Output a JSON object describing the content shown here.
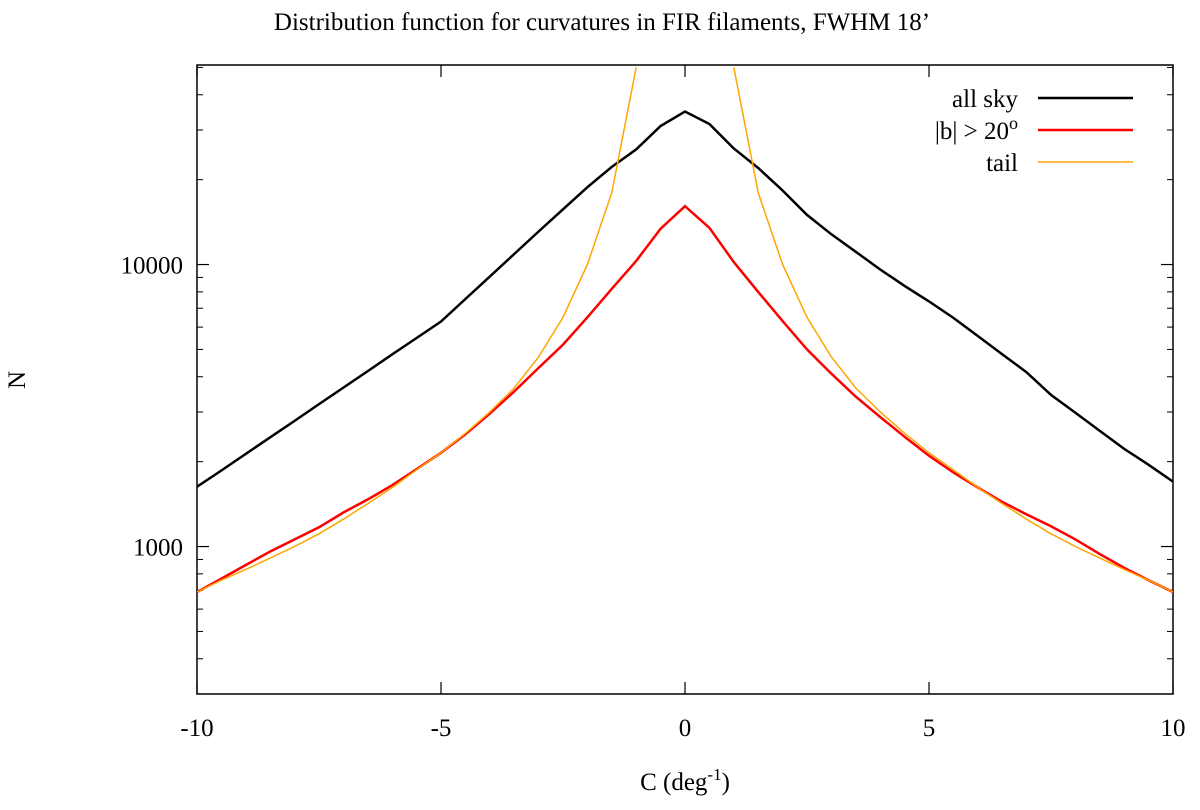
{
  "chart_data": {
    "type": "line",
    "title": "Distribution function for curvatures in FIR filaments, FWHM 18’",
    "xlabel": [
      "C (deg",
      "-1",
      ")"
    ],
    "ylabel": "N",
    "x": [
      -10,
      -9.5,
      -9,
      -8.5,
      -8,
      -7.5,
      -7,
      -6.5,
      -6,
      -5.5,
      -5,
      -4.5,
      -4,
      -3.5,
      -3,
      -2.5,
      -2,
      -1.5,
      -1,
      -0.5,
      0,
      0.5,
      1,
      1.5,
      2,
      2.5,
      3,
      3.5,
      4,
      4.5,
      5,
      5.5,
      6,
      6.5,
      7,
      7.5,
      8,
      8.5,
      9,
      9.5,
      10
    ],
    "series": [
      {
        "name": "all sky",
        "color": "#000000",
        "values": [
          1630,
          1860,
          2130,
          2440,
          2790,
          3200,
          3660,
          4190,
          4800,
          5490,
          6280,
          7550,
          9060,
          10900,
          13100,
          15700,
          18800,
          22200,
          25600,
          31000,
          34900,
          31500,
          25800,
          22000,
          18300,
          15000,
          12800,
          11100,
          9600,
          8400,
          7400,
          6470,
          5580,
          4810,
          4150,
          3450,
          2980,
          2570,
          2220,
          1950,
          1700
        ]
      },
      {
        "name": "|b| > 20",
        "name_sup": "o",
        "color": "#ff0000",
        "values": [
          690,
          770,
          860,
          960,
          1060,
          1170,
          1320,
          1470,
          1650,
          1880,
          2150,
          2500,
          2960,
          3550,
          4300,
          5200,
          6500,
          8200,
          10300,
          13400,
          16100,
          13500,
          10200,
          8000,
          6300,
          5000,
          4100,
          3400,
          2880,
          2450,
          2100,
          1830,
          1620,
          1440,
          1300,
          1180,
          1060,
          940,
          840,
          760,
          690
        ]
      },
      {
        "name": "tail",
        "color": "#ffa500",
        "values": [
          690,
          760,
          830,
          910,
          1000,
          1110,
          1250,
          1420,
          1620,
          1870,
          2150,
          2520,
          3000,
          3650,
          4700,
          6500,
          10000,
          18000,
          50000,
          null,
          null,
          null,
          50000,
          18000,
          10000,
          6500,
          4700,
          3650,
          3000,
          2520,
          2150,
          1870,
          1620,
          1420,
          1250,
          1110,
          1000,
          910,
          830,
          760,
          690
        ]
      }
    ],
    "xlim": [
      -10,
      10
    ],
    "xticks": [
      -10,
      -5,
      0,
      5,
      10
    ],
    "ylim": [
      300,
      51000
    ],
    "yticks": [
      1000,
      10000
    ],
    "yminorticks": [
      300,
      400,
      500,
      600,
      700,
      800,
      900,
      2000,
      3000,
      4000,
      5000,
      6000,
      7000,
      8000,
      9000,
      20000,
      30000,
      40000,
      50000
    ],
    "ylog": true,
    "legend": "top-right"
  }
}
